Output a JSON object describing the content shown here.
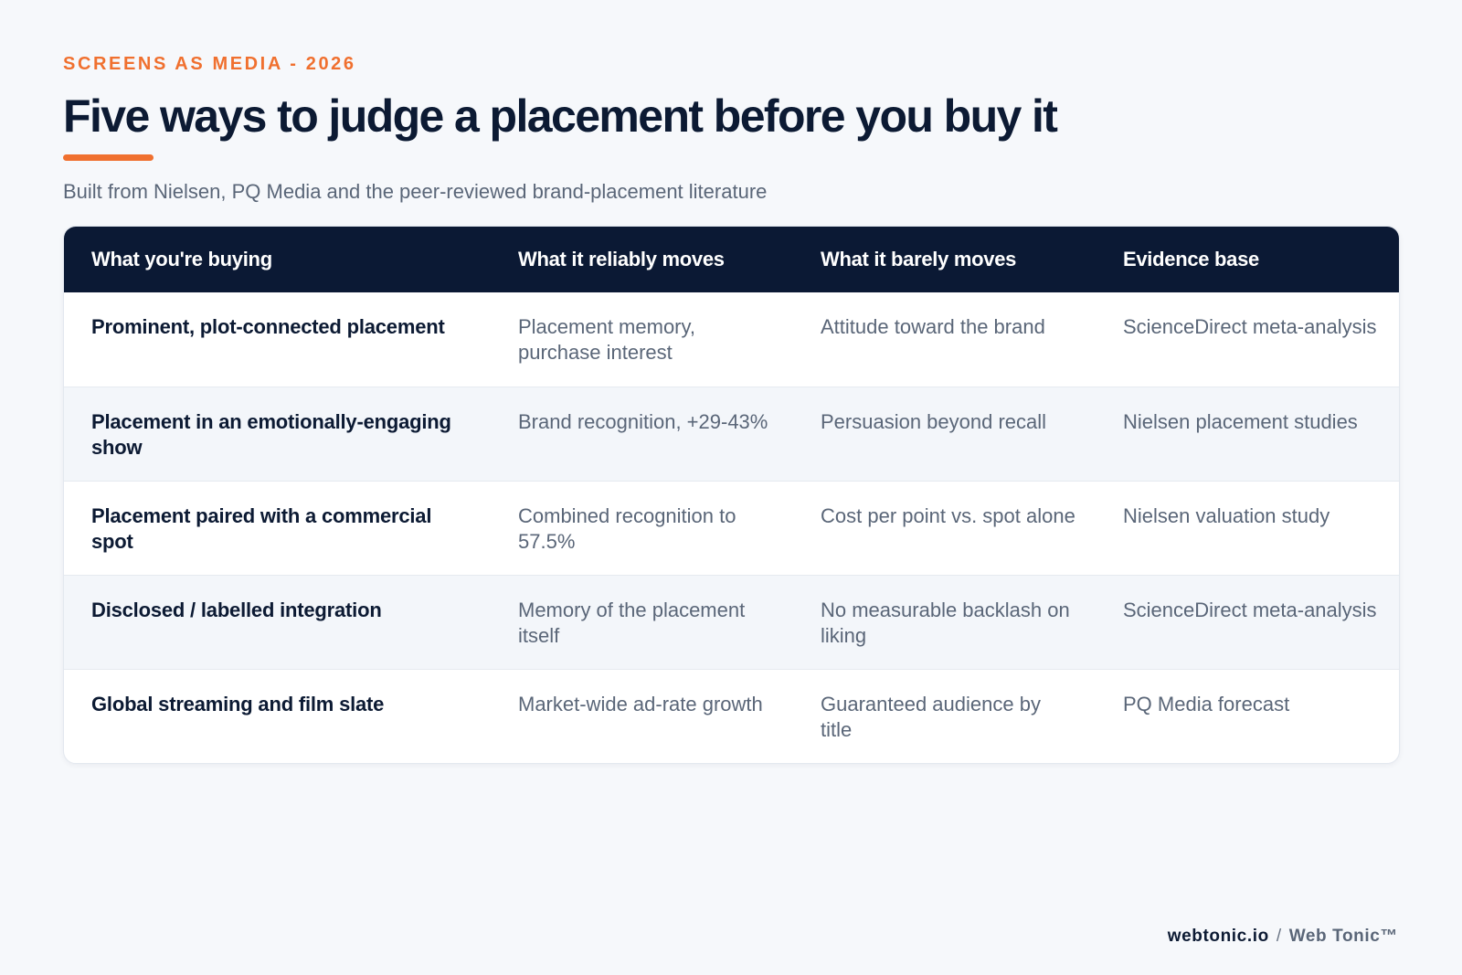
{
  "header": {
    "eyebrow": "SCREENS AS MEDIA - 2026",
    "title": "Five ways to judge a placement before you buy it",
    "subtitle": "Built from Nielsen, PQ Media and the peer-reviewed brand-placement literature"
  },
  "table": {
    "columns": [
      "What you're buying",
      "What it reliably moves",
      "What it barely moves",
      "Evidence base"
    ],
    "rows": [
      [
        "Prominent, plot-connected placement",
        "Placement memory, purchase interest",
        "Attitude toward the brand",
        "ScienceDirect meta-analysis"
      ],
      [
        "Placement in an emotionally-engaging show",
        "Brand recognition, +29-43%",
        "Persuasion beyond recall",
        "Nielsen placement studies"
      ],
      [
        "Placement paired with a commercial spot",
        "Combined recognition to 57.5%",
        "Cost per point vs. spot alone",
        "Nielsen valuation study"
      ],
      [
        "Disclosed / labelled integration",
        "Memory of the placement itself",
        "No measurable backlash on liking",
        "ScienceDirect meta-analysis"
      ],
      [
        "Global streaming and film slate",
        "Market-wide ad-rate growth",
        "Guaranteed audience by title",
        "PQ Media forecast"
      ]
    ]
  },
  "footer": {
    "domain": "webtonic.io",
    "separator": "/",
    "brand": "Web Tonic™"
  },
  "colors": {
    "accent": "#f0702f",
    "navy": "#0b1934",
    "muted_text": "#5a6678",
    "background": "#f6f8fb"
  }
}
